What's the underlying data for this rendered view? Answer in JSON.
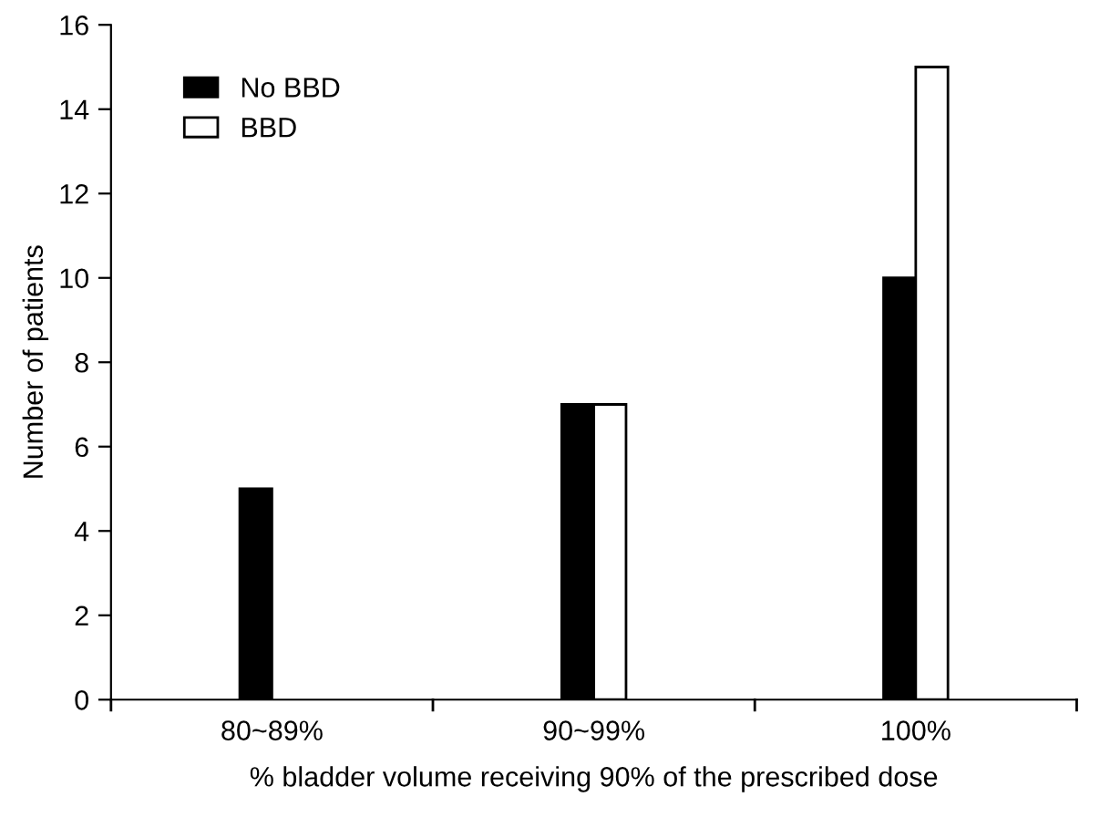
{
  "chart_data": {
    "type": "bar",
    "xlabel": "% bladder volume receiving 90% of the prescribed dose",
    "ylabel": "Number of patients",
    "categories": [
      "80~89%",
      "90~99%",
      "100%"
    ],
    "series": [
      {
        "name": "No BBD",
        "color": "#000000",
        "values": [
          5,
          7,
          10
        ]
      },
      {
        "name": "BBD",
        "color": "#ffffff",
        "values": [
          0,
          7,
          15
        ]
      }
    ],
    "ylim": [
      0,
      16
    ],
    "yticks": [
      0,
      2,
      4,
      6,
      8,
      10,
      12,
      14,
      16
    ],
    "grid": false,
    "legend": "top left"
  }
}
